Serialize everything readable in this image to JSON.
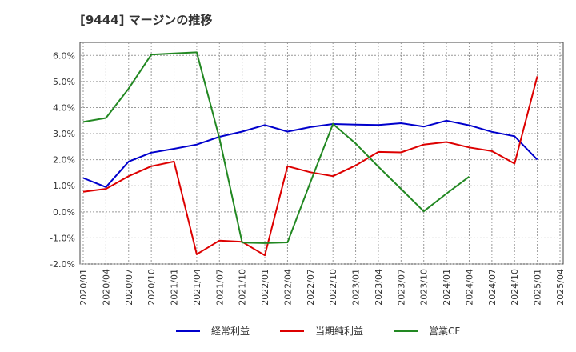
{
  "chart_data": {
    "type": "line",
    "title": "[9444]  マージンの推移",
    "x": [
      "2020/01",
      "2020/04",
      "2020/07",
      "2020/10",
      "2021/01",
      "2021/04",
      "2021/07",
      "2021/10",
      "2022/01",
      "2022/04",
      "2022/07",
      "2022/10",
      "2023/01",
      "2023/04",
      "2023/07",
      "2023/10",
      "2024/01",
      "2024/04",
      "2024/07",
      "2024/10",
      "2025/01",
      "2025/04"
    ],
    "ylim": [
      -2.0,
      6.5
    ],
    "yticks": [
      -2.0,
      -1.0,
      0.0,
      1.0,
      2.0,
      3.0,
      4.0,
      5.0,
      6.0
    ],
    "ytick_labels": [
      "-2.0%",
      "-1.0%",
      "0.0%",
      "1.0%",
      "2.0%",
      "3.0%",
      "4.0%",
      "5.0%",
      "6.0%"
    ],
    "grid": true,
    "legend_position": "bottom",
    "series": [
      {
        "name": "経常利益",
        "color": "#0000cc",
        "values": [
          1.3,
          0.95,
          1.93,
          2.27,
          2.42,
          2.58,
          2.88,
          3.08,
          3.33,
          3.08,
          3.25,
          3.37,
          3.35,
          3.33,
          3.4,
          3.27,
          3.5,
          3.32,
          3.07,
          2.9,
          2.0,
          null
        ]
      },
      {
        "name": "当期純利益",
        "color": "#dd0000",
        "values": [
          0.77,
          0.88,
          1.37,
          1.75,
          1.93,
          -1.63,
          -1.1,
          -1.15,
          -1.67,
          1.75,
          1.52,
          1.37,
          1.78,
          2.3,
          2.28,
          2.58,
          2.68,
          2.47,
          2.33,
          1.85,
          5.2,
          null
        ]
      },
      {
        "name": "営業CF",
        "color": "#228822",
        "values": [
          3.45,
          3.6,
          4.73,
          6.03,
          6.08,
          6.12,
          2.82,
          -1.18,
          -1.2,
          -1.17,
          1.12,
          3.37,
          2.62,
          1.73,
          0.88,
          0.02,
          0.7,
          1.35,
          null,
          null,
          null,
          null
        ]
      }
    ]
  }
}
